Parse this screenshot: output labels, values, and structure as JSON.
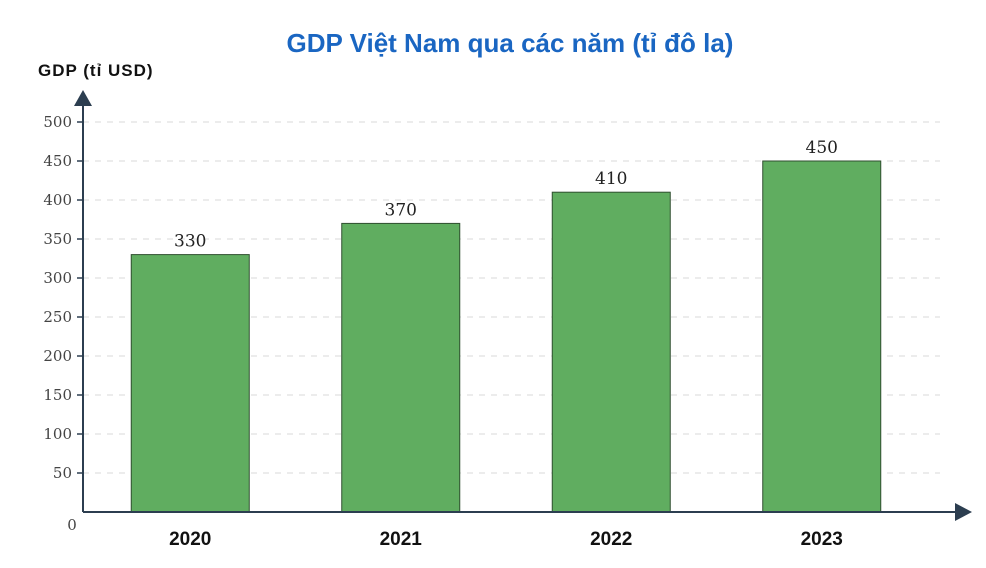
{
  "chart_data": {
    "type": "bar",
    "title": "GDP Việt Nam qua các năm (tỉ đô la)",
    "ylabel": "GDP (tỉ USD)",
    "xlabel": "",
    "categories": [
      "2020",
      "2021",
      "2022",
      "2023"
    ],
    "values": [
      330,
      370,
      410,
      450
    ],
    "ylim": [
      0,
      500
    ],
    "yticks": [
      0,
      50,
      100,
      150,
      200,
      250,
      300,
      350,
      400,
      450,
      500
    ],
    "grid": true,
    "legend": "none",
    "colors": {
      "bar": "#60ad60",
      "title": "#1a66c2",
      "axis": "#2c3e50"
    }
  }
}
